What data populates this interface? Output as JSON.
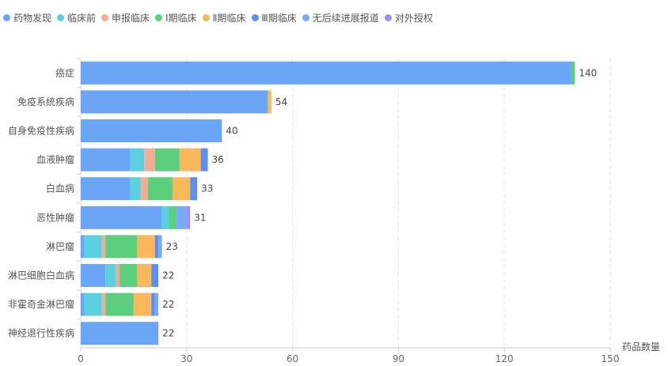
{
  "chart_data": {
    "type": "bar",
    "orientation": "horizontal",
    "stacked": true,
    "categories": [
      "癌症",
      "免疫系统疾病",
      "自身免疫性疾病",
      "血液肿瘤",
      "白血病",
      "恶性肿瘤",
      "淋巴瘤",
      "淋巴细胞白血病",
      "非霍奇金淋巴瘤",
      "神经退行性疾病"
    ],
    "series": [
      {
        "name": "药物发现",
        "color": "#6aa5f8",
        "values": [
          139,
          53,
          40,
          14,
          14,
          23,
          1,
          7,
          1,
          22
        ]
      },
      {
        "name": "临床前",
        "color": "#5bd1df",
        "values": [
          0,
          0,
          0,
          4,
          3,
          2,
          5,
          3,
          5,
          0
        ]
      },
      {
        "name": "申报临床",
        "color": "#f6ac94",
        "values": [
          0,
          0,
          0,
          3,
          2,
          0,
          1,
          1,
          1,
          0
        ]
      },
      {
        "name": "Ⅰ期临床",
        "color": "#5ccf7f",
        "values": [
          1,
          0,
          0,
          7,
          7,
          2,
          9,
          5,
          8,
          0
        ]
      },
      {
        "name": "Ⅱ期临床",
        "color": "#f8b85b",
        "values": [
          0,
          1,
          0,
          6,
          5,
          0,
          5,
          4,
          5,
          0
        ]
      },
      {
        "name": "Ⅲ期临床",
        "color": "#5b8ff0",
        "values": [
          0,
          0,
          0,
          2,
          2,
          0,
          1,
          2,
          1,
          0
        ]
      },
      {
        "name": "无后续进展报道",
        "color": "#7aa9f7",
        "values": [
          0,
          0,
          0,
          0,
          0,
          3,
          1,
          0,
          1,
          0
        ]
      },
      {
        "name": "对外授权",
        "color": "#9d8ff0",
        "values": [
          0,
          0,
          0,
          0,
          0,
          1,
          0,
          0,
          0,
          0
        ]
      }
    ],
    "totals": [
      140,
      54,
      40,
      36,
      33,
      31,
      23,
      22,
      22,
      22
    ],
    "xlabel": "药品数量",
    "xlim": [
      0,
      150
    ],
    "xticks": [
      0,
      30,
      60,
      90,
      120,
      150
    ],
    "grid": "vertical-dashed",
    "legend_position": "top-left"
  }
}
